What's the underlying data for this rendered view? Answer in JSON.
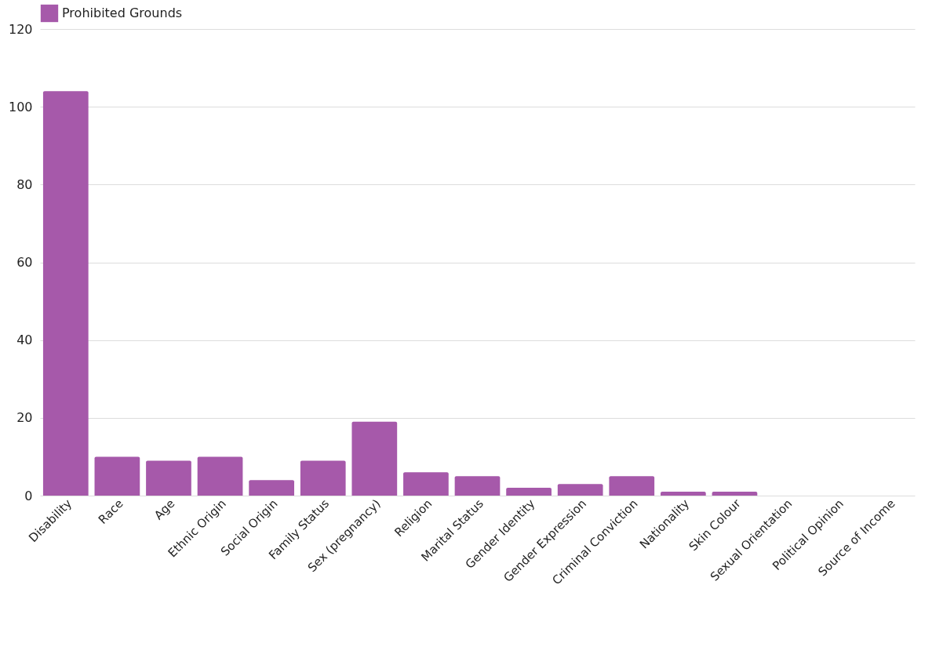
{
  "chart_data": {
    "type": "bar",
    "categories": [
      "Disability",
      "Race",
      "Age",
      "Ethnic Origin",
      "Social Origin",
      "Family Status",
      "Sex (pregnancy)",
      "Religion",
      "Marital Status",
      "Gender Identity",
      "Gender Expression",
      "Criminal Conviction",
      "Nationality",
      "Skin Colour",
      "Sexual Orientation",
      "Political Opinion",
      "Source of Income"
    ],
    "series": [
      {
        "name": "Prohibited Grounds",
        "color": "#a659aa",
        "values": [
          104,
          10,
          9,
          10,
          4,
          9,
          19,
          6,
          5,
          2,
          3,
          5,
          1,
          1,
          0,
          0,
          0
        ]
      }
    ],
    "ylim": [
      0,
      120
    ],
    "yticks": [
      0,
      20,
      40,
      60,
      80,
      100,
      120
    ],
    "grid": "y",
    "legend": "top"
  }
}
